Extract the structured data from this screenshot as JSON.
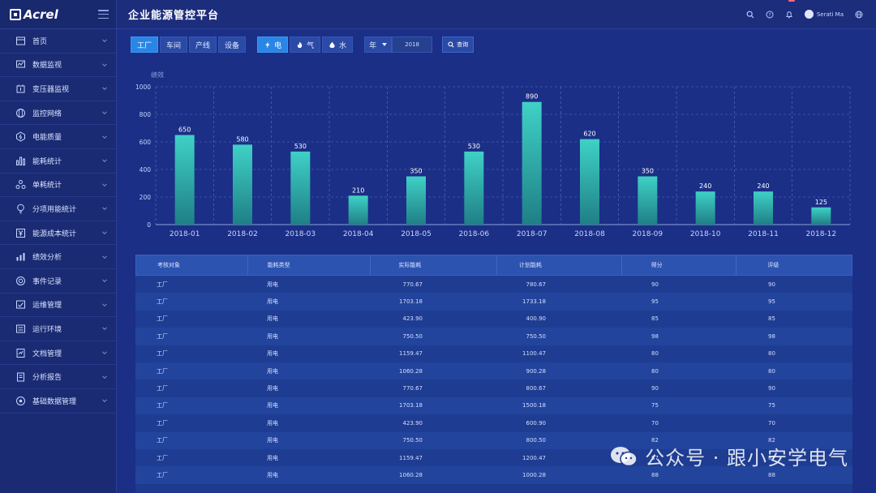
{
  "app": {
    "logo": "Acrel",
    "title": "企业能源管控平台"
  },
  "header": {
    "badge": "",
    "user_name": "Serati Ma"
  },
  "sidebar": {
    "items": [
      {
        "label": "首页",
        "icon": "home-icon"
      },
      {
        "label": "数据监视",
        "icon": "monitor-icon"
      },
      {
        "label": "变压器监视",
        "icon": "transformer-icon"
      },
      {
        "label": "监控网络",
        "icon": "network-icon"
      },
      {
        "label": "电能质量",
        "icon": "quality-icon"
      },
      {
        "label": "能耗统计",
        "icon": "bar-chart-icon"
      },
      {
        "label": "单耗统计",
        "icon": "nodes-icon"
      },
      {
        "label": "分项用能统计",
        "icon": "bulb-icon"
      },
      {
        "label": "能源成本统计",
        "icon": "yen-icon"
      },
      {
        "label": "绩效分析",
        "icon": "performance-icon"
      },
      {
        "label": "事件记录",
        "icon": "record-icon"
      },
      {
        "label": "运维管理",
        "icon": "maintenance-icon"
      },
      {
        "label": "运行环境",
        "icon": "environment-icon"
      },
      {
        "label": "文档管理",
        "icon": "document-icon"
      },
      {
        "label": "分析报告",
        "icon": "report-icon"
      },
      {
        "label": "基础数据管理",
        "icon": "database-icon"
      }
    ]
  },
  "toolbar": {
    "scope_tabs": [
      "工厂",
      "车间",
      "产线",
      "设备"
    ],
    "energy_tabs": [
      {
        "label": "电",
        "icon": "lightning-icon"
      },
      {
        "label": "气",
        "icon": "flame-icon"
      },
      {
        "label": "水",
        "icon": "water-drop-icon"
      }
    ],
    "period_select": "年",
    "year_value": "2018",
    "query_label": "查询"
  },
  "chart_data": {
    "type": "bar",
    "ylabel": "绩效",
    "ylim": [
      0,
      1000
    ],
    "yticks": [
      0,
      200,
      400,
      600,
      800,
      1000
    ],
    "categories": [
      "2018-01",
      "2018-02",
      "2018-03",
      "2018-04",
      "2018-05",
      "2018-06",
      "2018-07",
      "2018-08",
      "2018-09",
      "2018-10",
      "2018-11",
      "2018-12"
    ],
    "values": [
      650,
      580,
      530,
      210,
      350,
      530,
      890,
      620,
      350,
      240,
      240,
      125
    ],
    "grid": true,
    "colors": {
      "bar_top": "#3fd1c6",
      "bar_bottom": "#1f7f86",
      "grid": "#5a74c4"
    }
  },
  "table": {
    "headers": [
      "考核对象",
      "能耗类型",
      "实际能耗",
      "计划能耗",
      "得分",
      "评级"
    ],
    "rows": [
      [
        "工厂",
        "用电",
        "770.67",
        "780.67",
        "90",
        "90"
      ],
      [
        "工厂",
        "用电",
        "1703.18",
        "1733.18",
        "95",
        "95"
      ],
      [
        "工厂",
        "用电",
        "423.90",
        "400.90",
        "85",
        "85"
      ],
      [
        "工厂",
        "用电",
        "750.50",
        "750.50",
        "98",
        "98"
      ],
      [
        "工厂",
        "用电",
        "1159.47",
        "1100.47",
        "80",
        "80"
      ],
      [
        "工厂",
        "用电",
        "1060.28",
        "900.28",
        "80",
        "80"
      ],
      [
        "工厂",
        "用电",
        "770.67",
        "800.67",
        "90",
        "90"
      ],
      [
        "工厂",
        "用电",
        "1703.18",
        "1500.18",
        "75",
        "75"
      ],
      [
        "工厂",
        "用电",
        "423.90",
        "600.90",
        "70",
        "70"
      ],
      [
        "工厂",
        "用电",
        "750.50",
        "800.50",
        "82",
        "82"
      ],
      [
        "工厂",
        "用电",
        "1159.47",
        "1200.47",
        "87",
        "87"
      ],
      [
        "工厂",
        "用电",
        "1060.28",
        "1000.28",
        "88",
        "88"
      ]
    ]
  },
  "watermark": {
    "text": "公众号 · 跟小安学电气"
  }
}
